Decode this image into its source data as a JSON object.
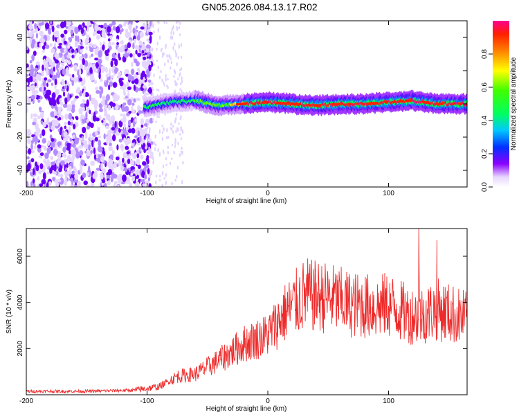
{
  "title": "GN05.2026.084.13.17.R02",
  "chart_data": [
    {
      "type": "heatmap",
      "xlabel": "Height of straight line (km)",
      "ylabel": "Frequency (Hz)",
      "xlim": [
        -200,
        165
      ],
      "ylim": [
        -50,
        50
      ],
      "xticks": [
        -200,
        -100,
        0,
        100
      ],
      "yticks": [
        -40,
        -20,
        0,
        20,
        40
      ],
      "colorbar": {
        "label": "Normalized spectral amplitude",
        "range": [
          0,
          1
        ],
        "ticks": [
          "0.0",
          "0.2",
          "0.4",
          "0.6",
          "0.8"
        ]
      },
      "description_regions": [
        {
          "x_range": [
            -200,
            -102
          ],
          "pattern": "broadband noise",
          "amplitude": 0.15
        },
        {
          "x_range": [
            -102,
            165
          ],
          "pattern": "narrow band near 0 Hz",
          "amplitude": 0.9
        }
      ],
      "center_frequency_track": [
        {
          "x": -100,
          "y": -2
        },
        {
          "x": -80,
          "y": 1
        },
        {
          "x": -60,
          "y": 2
        },
        {
          "x": -40,
          "y": -1
        },
        {
          "x": -20,
          "y": 0
        },
        {
          "x": 0,
          "y": 1
        },
        {
          "x": 20,
          "y": 0
        },
        {
          "x": 40,
          "y": -1
        },
        {
          "x": 60,
          "y": 0
        },
        {
          "x": 80,
          "y": 0
        },
        {
          "x": 100,
          "y": 1
        },
        {
          "x": 120,
          "y": 2
        },
        {
          "x": 140,
          "y": 0
        },
        {
          "x": 165,
          "y": 0
        }
      ]
    },
    {
      "type": "line",
      "xlabel": "Height of straight line (km)",
      "ylabel": "SNR (10 * v/v)",
      "xlim": [
        -200,
        165
      ],
      "ylim": [
        0,
        7200
      ],
      "xticks": [
        -200,
        -100,
        0,
        100
      ],
      "yticks": [
        2000,
        4000,
        6000
      ],
      "series": [
        {
          "name": "SNR",
          "color": "#ee2a2a",
          "envelope": [
            {
              "x": -200,
              "y": 150
            },
            {
              "x": -150,
              "y": 150
            },
            {
              "x": -110,
              "y": 200
            },
            {
              "x": -90,
              "y": 350
            },
            {
              "x": -75,
              "y": 800
            },
            {
              "x": -60,
              "y": 900
            },
            {
              "x": -40,
              "y": 1500
            },
            {
              "x": -20,
              "y": 2200
            },
            {
              "x": 0,
              "y": 2600
            },
            {
              "x": 15,
              "y": 3600
            },
            {
              "x": 30,
              "y": 4300
            },
            {
              "x": 50,
              "y": 4200
            },
            {
              "x": 70,
              "y": 3900
            },
            {
              "x": 90,
              "y": 3800
            },
            {
              "x": 100,
              "y": 3900
            },
            {
              "x": 115,
              "y": 3500
            },
            {
              "x": 125,
              "y": 3400
            },
            {
              "x": 140,
              "y": 3700
            },
            {
              "x": 165,
              "y": 3300
            }
          ],
          "peaks": [
            {
              "x": 33,
              "y": 5900
            },
            {
              "x": 125,
              "y": 7200
            },
            {
              "x": 140,
              "y": 6700
            }
          ]
        }
      ]
    }
  ]
}
